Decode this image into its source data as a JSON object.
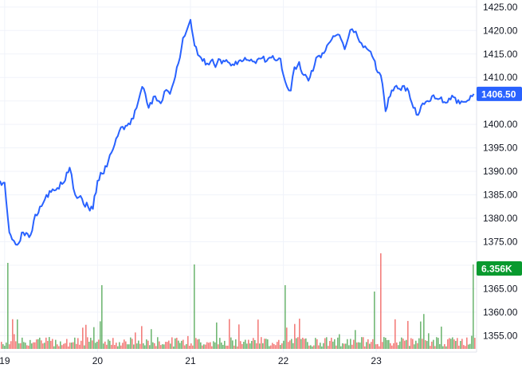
{
  "chart_data": {
    "type": "line",
    "title": "",
    "xlabel": "",
    "ylabel": "",
    "price": {
      "ylim": [
        1351.5,
        1426.5
      ],
      "y_ticks": [
        1355,
        1360,
        1365,
        1370,
        1375,
        1380,
        1385,
        1390,
        1395,
        1400,
        1405,
        1410,
        1415,
        1420,
        1425
      ],
      "y_tick_labels": [
        "1355.00",
        "1360.00",
        "1365.00",
        "",
        "1375.00",
        "1380.00",
        "1385.00",
        "1390.00",
        "1395.00",
        "1400.00",
        "",
        "1410.00",
        "1415.00",
        "1420.00",
        "1425.00"
      ],
      "x_ticks": [
        19,
        20,
        21,
        22,
        23
      ],
      "x_tick_labels": [
        "19",
        "20",
        "21",
        "22",
        "23"
      ],
      "xlim": [
        18.95,
        24.08
      ],
      "grid": true,
      "line_color": "#2962ff",
      "series": [
        {
          "x": [
            18.95,
            19.0,
            19.05,
            19.08,
            19.12,
            19.2,
            19.28,
            19.33,
            19.38,
            19.45,
            19.5,
            19.55,
            19.62,
            19.7,
            19.76,
            19.8,
            19.85,
            19.9,
            19.95,
            20.0,
            20.05,
            20.1,
            20.15,
            20.2,
            20.27,
            20.35,
            20.42,
            20.48,
            20.55,
            20.62,
            20.68,
            20.72,
            20.78,
            20.82,
            20.87,
            20.92,
            20.96,
            21.0,
            21.03,
            21.06,
            21.1,
            21.13,
            21.18,
            21.22,
            21.27,
            21.32,
            21.37,
            21.42,
            21.47,
            21.52,
            21.57,
            21.62,
            21.67,
            21.72,
            21.77,
            21.82,
            21.87,
            21.92,
            21.97,
            22.0,
            22.04,
            22.08,
            22.12,
            22.17,
            22.22,
            22.27,
            22.32,
            22.37,
            22.42,
            22.47,
            22.52,
            22.57,
            22.62,
            22.66,
            22.7,
            22.74,
            22.78,
            22.82,
            22.86,
            22.9,
            22.94,
            22.97,
            23.0,
            23.05,
            23.1,
            23.15,
            23.2,
            23.25,
            23.3,
            23.35,
            23.4,
            23.45,
            23.5,
            23.55,
            23.6,
            23.65,
            23.7,
            23.75,
            23.8,
            23.85,
            23.9,
            23.95,
            24.0,
            24.05
          ],
          "y": [
            1388,
            1387.6,
            1377,
            1375.5,
            1374.4,
            1377,
            1376.5,
            1380.8,
            1382.5,
            1385,
            1385.6,
            1386,
            1387.3,
            1390.8,
            1385,
            1384.5,
            1383,
            1382.4,
            1382,
            1388,
            1389.5,
            1391,
            1394,
            1397,
            1399.5,
            1400,
            1403.5,
            1408,
            1403.5,
            1406,
            1404.5,
            1407,
            1406.5,
            1409,
            1413,
            1418.4,
            1420,
            1422.3,
            1418.5,
            1416.5,
            1414.5,
            1413.5,
            1413,
            1413.5,
            1412.2,
            1413.8,
            1413.4,
            1413.1,
            1412.6,
            1413.5,
            1413.6,
            1413.7,
            1413.4,
            1413.8,
            1414.1,
            1413.5,
            1414.2,
            1413.6,
            1414,
            1410.6,
            1408,
            1407.2,
            1412.2,
            1413.3,
            1410.5,
            1409.3,
            1411.4,
            1414.5,
            1415.2,
            1416.8,
            1418.1,
            1419,
            1418.2,
            1416,
            1418.5,
            1420.3,
            1419.8,
            1417.6,
            1416.4,
            1416.1,
            1415.5,
            1414,
            1411.7,
            1410.4,
            1402.8,
            1406,
            1408,
            1407.6,
            1408.2,
            1407,
            1403.5,
            1402,
            1404.5,
            1405,
            1406,
            1405.5,
            1405.8,
            1404.6,
            1405.3,
            1405.7,
            1404.4,
            1404.8,
            1405.2,
            1406.5
          ]
        }
      ],
      "last_value_label": "1406.50",
      "last_value_color": "#2962ff"
    },
    "volume": {
      "last_value_label": "6.356K",
      "last_value_color": "#089a2e",
      "up_color": "#43a047",
      "down_color": "#ef5350",
      "type": "bar"
    }
  }
}
